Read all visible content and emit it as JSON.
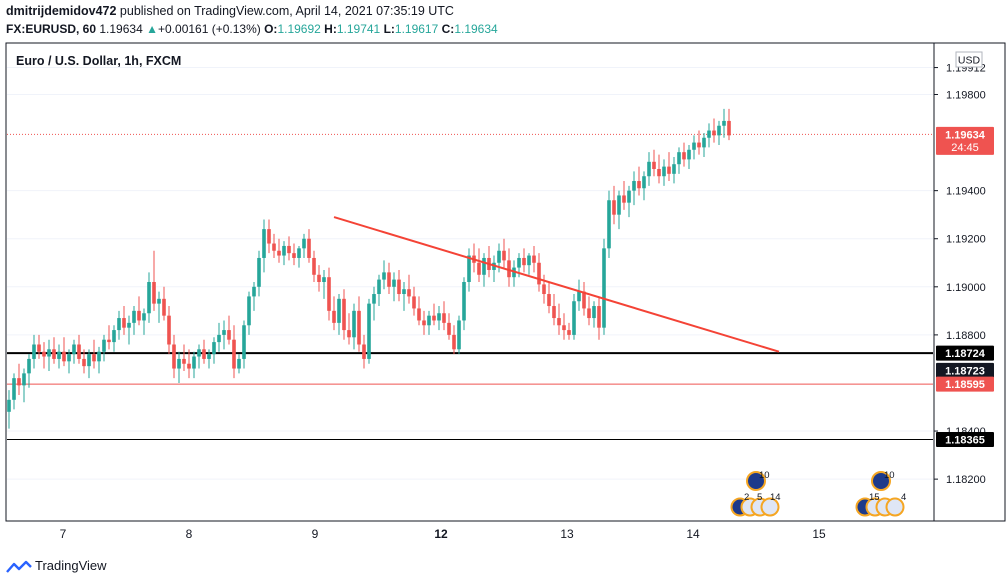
{
  "header": {
    "author": "dmitrijdemidov472",
    "published_text": " published on TradingView.com, April 14, 2021 07:35:19 UTC"
  },
  "quote": {
    "symbol": "FX:EURUSD, 60",
    "last": "1.19634",
    "change": "+0.00161 (+0.13%)",
    "open_label": "O:",
    "open": "1.19692",
    "high_label": "H:",
    "high": "1.19741",
    "low_label": "L:",
    "low": "1.19617",
    "close_label": "C:",
    "close": "1.19634"
  },
  "footer": {
    "brand": "TradingView"
  },
  "chart_data": {
    "type": "candlestick",
    "title": "Euro / U.S. Dollar, 1h, FXCM",
    "currency": "USD",
    "y_ticks": [
      "1.19912",
      "1.19800",
      "1.19400",
      "1.19200",
      "1.19000",
      "1.18800",
      "1.18400",
      "1.18200"
    ],
    "y_tick_values": [
      1.19912,
      1.198,
      1.194,
      1.192,
      1.19,
      1.188,
      1.184,
      1.182
    ],
    "x_ticks": [
      "7",
      "8",
      "9",
      "12",
      "13",
      "14",
      "15"
    ],
    "ylim": [
      1.1803,
      1.2001
    ],
    "last_price": {
      "value": 1.19634,
      "label": "1.19634",
      "countdown": "24:45",
      "color": "#ef5350"
    },
    "price_lines": [
      {
        "value": 1.18724,
        "label": "1.18724",
        "color": "#000000"
      },
      {
        "value": 1.18723,
        "label": "1.18723",
        "color": "#131722"
      },
      {
        "value": 1.18595,
        "label": "1.18595",
        "color": "#ef5350"
      },
      {
        "value": 1.18365,
        "label": "1.18365",
        "color": "#000000"
      }
    ],
    "trendline": {
      "from": {
        "bar": 65,
        "price": 1.1929
      },
      "to": {
        "bar": 154,
        "price": 1.1873
      },
      "color": "#f44336"
    },
    "event_badges": [
      {
        "day": "14",
        "top": "10",
        "bottom": [
          "2",
          "5",
          "14"
        ]
      },
      {
        "day": "15",
        "top": "10",
        "bottom": [
          "15",
          "4"
        ]
      }
    ],
    "colors": {
      "up": "#26a69a",
      "down": "#ef5350"
    },
    "candles": [
      [
        1.1848,
        1.1857,
        1.1841,
        1.1853
      ],
      [
        1.1853,
        1.1864,
        1.1849,
        1.1862
      ],
      [
        1.1862,
        1.1868,
        1.1855,
        1.1859
      ],
      [
        1.1859,
        1.1866,
        1.1852,
        1.1864
      ],
      [
        1.1864,
        1.1872,
        1.1858,
        1.187
      ],
      [
        1.187,
        1.188,
        1.1866,
        1.1876
      ],
      [
        1.1876,
        1.188,
        1.187,
        1.1873
      ],
      [
        1.1873,
        1.1877,
        1.1866,
        1.1871
      ],
      [
        1.1871,
        1.1878,
        1.1865,
        1.1874
      ],
      [
        1.1874,
        1.1879,
        1.1868,
        1.187
      ],
      [
        1.187,
        1.1876,
        1.1866,
        1.1873
      ],
      [
        1.1873,
        1.1879,
        1.1867,
        1.1869
      ],
      [
        1.1869,
        1.1874,
        1.1864,
        1.1872
      ],
      [
        1.1872,
        1.1878,
        1.1868,
        1.1876
      ],
      [
        1.1876,
        1.188,
        1.1868,
        1.187
      ],
      [
        1.187,
        1.1874,
        1.1864,
        1.1867
      ],
      [
        1.1867,
        1.1874,
        1.1862,
        1.1872
      ],
      [
        1.1872,
        1.1878,
        1.1866,
        1.1869
      ],
      [
        1.1869,
        1.1875,
        1.1864,
        1.1873
      ],
      [
        1.1873,
        1.188,
        1.1869,
        1.1878
      ],
      [
        1.1878,
        1.1884,
        1.1874,
        1.1877
      ],
      [
        1.1877,
        1.1884,
        1.1873,
        1.1882
      ],
      [
        1.1882,
        1.189,
        1.1878,
        1.1887
      ],
      [
        1.1887,
        1.1892,
        1.188,
        1.1883
      ],
      [
        1.1883,
        1.1888,
        1.1876,
        1.1885
      ],
      [
        1.1885,
        1.1892,
        1.188,
        1.189
      ],
      [
        1.189,
        1.1896,
        1.1884,
        1.1886
      ],
      [
        1.1886,
        1.1891,
        1.188,
        1.1889
      ],
      [
        1.1889,
        1.1906,
        1.1885,
        1.1902
      ],
      [
        1.1902,
        1.1915,
        1.189,
        1.1893
      ],
      [
        1.1893,
        1.1898,
        1.1885,
        1.1895
      ],
      [
        1.1895,
        1.19,
        1.1886,
        1.1888
      ],
      [
        1.1888,
        1.1892,
        1.1872,
        1.1876
      ],
      [
        1.1876,
        1.188,
        1.1862,
        1.1866
      ],
      [
        1.1866,
        1.1873,
        1.186,
        1.187
      ],
      [
        1.187,
        1.1876,
        1.1865,
        1.1868
      ],
      [
        1.1868,
        1.1874,
        1.1862,
        1.1866
      ],
      [
        1.1866,
        1.1873,
        1.1862,
        1.1871
      ],
      [
        1.1871,
        1.1876,
        1.1866,
        1.1874
      ],
      [
        1.1874,
        1.1878,
        1.1868,
        1.187
      ],
      [
        1.187,
        1.1874,
        1.1866,
        1.1872
      ],
      [
        1.1872,
        1.1879,
        1.1868,
        1.1877
      ],
      [
        1.1877,
        1.1885,
        1.1873,
        1.188
      ],
      [
        1.188,
        1.1886,
        1.1874,
        1.1882
      ],
      [
        1.1882,
        1.1888,
        1.1876,
        1.1878
      ],
      [
        1.1878,
        1.1884,
        1.1862,
        1.1866
      ],
      [
        1.1866,
        1.1872,
        1.1864,
        1.187
      ],
      [
        1.187,
        1.1886,
        1.1866,
        1.1884
      ],
      [
        1.1884,
        1.1898,
        1.188,
        1.1896
      ],
      [
        1.1896,
        1.1902,
        1.189,
        1.19
      ],
      [
        1.19,
        1.1915,
        1.1896,
        1.1912
      ],
      [
        1.1912,
        1.1928,
        1.1906,
        1.1924
      ],
      [
        1.1924,
        1.1928,
        1.1914,
        1.1918
      ],
      [
        1.1918,
        1.1922,
        1.1912,
        1.1915
      ],
      [
        1.1915,
        1.192,
        1.191,
        1.1913
      ],
      [
        1.1913,
        1.1919,
        1.1909,
        1.1917
      ],
      [
        1.1917,
        1.1921,
        1.1911,
        1.1914
      ],
      [
        1.1914,
        1.1918,
        1.1909,
        1.1912
      ],
      [
        1.1912,
        1.1917,
        1.1908,
        1.1916
      ],
      [
        1.1916,
        1.1922,
        1.1912,
        1.192
      ],
      [
        1.192,
        1.1924,
        1.191,
        1.1912
      ],
      [
        1.1912,
        1.1915,
        1.1902,
        1.1905
      ],
      [
        1.1905,
        1.1909,
        1.1898,
        1.1902
      ],
      [
        1.1902,
        1.1907,
        1.1895,
        1.1904
      ],
      [
        1.1904,
        1.1908,
        1.1886,
        1.189
      ],
      [
        1.189,
        1.1896,
        1.1882,
        1.1885
      ],
      [
        1.1885,
        1.1897,
        1.188,
        1.1895
      ],
      [
        1.1895,
        1.1899,
        1.1878,
        1.1882
      ],
      [
        1.1882,
        1.1889,
        1.1876,
        1.1879
      ],
      [
        1.1879,
        1.1893,
        1.1874,
        1.189
      ],
      [
        1.189,
        1.1896,
        1.1873,
        1.1876
      ],
      [
        1.1876,
        1.188,
        1.1866,
        1.187
      ],
      [
        1.187,
        1.1895,
        1.1868,
        1.1893
      ],
      [
        1.1893,
        1.19,
        1.1886,
        1.1897
      ],
      [
        1.1897,
        1.1905,
        1.1892,
        1.1903
      ],
      [
        1.1903,
        1.1911,
        1.1899,
        1.1906
      ],
      [
        1.1906,
        1.191,
        1.1897,
        1.19
      ],
      [
        1.19,
        1.1906,
        1.1894,
        1.1903
      ],
      [
        1.1903,
        1.1907,
        1.1894,
        1.1897
      ],
      [
        1.1897,
        1.1902,
        1.189,
        1.1899
      ],
      [
        1.1899,
        1.1905,
        1.1893,
        1.1896
      ],
      [
        1.1896,
        1.19,
        1.1888,
        1.1891
      ],
      [
        1.1891,
        1.1896,
        1.1884,
        1.1886
      ],
      [
        1.1886,
        1.189,
        1.188,
        1.1884
      ],
      [
        1.1884,
        1.189,
        1.188,
        1.1888
      ],
      [
        1.1888,
        1.1893,
        1.1884,
        1.1886
      ],
      [
        1.1886,
        1.1892,
        1.1882,
        1.1889
      ],
      [
        1.1889,
        1.1894,
        1.1882,
        1.1885
      ],
      [
        1.1885,
        1.1889,
        1.1878,
        1.188
      ],
      [
        1.188,
        1.1884,
        1.1872,
        1.1874
      ],
      [
        1.1874,
        1.1888,
        1.1872,
        1.1886
      ],
      [
        1.1886,
        1.1904,
        1.1882,
        1.1902
      ],
      [
        1.1902,
        1.1916,
        1.1898,
        1.1913
      ],
      [
        1.1913,
        1.1918,
        1.1906,
        1.191
      ],
      [
        1.191,
        1.1916,
        1.1902,
        1.1905
      ],
      [
        1.1905,
        1.1914,
        1.19,
        1.1912
      ],
      [
        1.1912,
        1.1917,
        1.1904,
        1.1907
      ],
      [
        1.1907,
        1.1913,
        1.1902,
        1.191
      ],
      [
        1.191,
        1.1918,
        1.1906,
        1.1915
      ],
      [
        1.1915,
        1.192,
        1.1908,
        1.1911
      ],
      [
        1.1911,
        1.1916,
        1.19,
        1.1904
      ],
      [
        1.1904,
        1.1911,
        1.19,
        1.1908
      ],
      [
        1.1908,
        1.1914,
        1.1904,
        1.1912
      ],
      [
        1.1912,
        1.1916,
        1.1906,
        1.1909
      ],
      [
        1.1909,
        1.1914,
        1.1905,
        1.1913
      ],
      [
        1.1913,
        1.1917,
        1.1906,
        1.191
      ],
      [
        1.191,
        1.1914,
        1.1898,
        1.1901
      ],
      [
        1.1901,
        1.1905,
        1.1893,
        1.1897
      ],
      [
        1.1897,
        1.1902,
        1.1889,
        1.1892
      ],
      [
        1.1892,
        1.1897,
        1.1884,
        1.1887
      ],
      [
        1.1887,
        1.1893,
        1.188,
        1.1884
      ],
      [
        1.1884,
        1.1889,
        1.1878,
        1.1882
      ],
      [
        1.1882,
        1.1885,
        1.1878,
        1.188
      ],
      [
        1.188,
        1.1897,
        1.1878,
        1.1894
      ],
      [
        1.1894,
        1.1903,
        1.189,
        1.1898
      ],
      [
        1.1898,
        1.1902,
        1.1888,
        1.1891
      ],
      [
        1.1891,
        1.1896,
        1.1884,
        1.1887
      ],
      [
        1.1887,
        1.1894,
        1.1883,
        1.1892
      ],
      [
        1.1892,
        1.1896,
        1.1878,
        1.1883
      ],
      [
        1.1883,
        1.192,
        1.188,
        1.1916
      ],
      [
        1.1916,
        1.194,
        1.1912,
        1.1936
      ],
      [
        1.1936,
        1.1942,
        1.1926,
        1.193
      ],
      [
        1.193,
        1.194,
        1.1924,
        1.1938
      ],
      [
        1.1938,
        1.1944,
        1.1932,
        1.1935
      ],
      [
        1.1935,
        1.1942,
        1.1929,
        1.194
      ],
      [
        1.194,
        1.1948,
        1.1934,
        1.1944
      ],
      [
        1.1944,
        1.195,
        1.1938,
        1.1941
      ],
      [
        1.1941,
        1.1948,
        1.1936,
        1.1946
      ],
      [
        1.1946,
        1.1956,
        1.1942,
        1.1952
      ],
      [
        1.1952,
        1.1957,
        1.1946,
        1.1949
      ],
      [
        1.1949,
        1.1955,
        1.1943,
        1.1946
      ],
      [
        1.1946,
        1.1953,
        1.1942,
        1.195
      ],
      [
        1.195,
        1.1956,
        1.1944,
        1.1947
      ],
      [
        1.1947,
        1.1954,
        1.1943,
        1.1951
      ],
      [
        1.1951,
        1.1958,
        1.1947,
        1.1956
      ],
      [
        1.1956,
        1.196,
        1.195,
        1.1953
      ],
      [
        1.1953,
        1.1959,
        1.1949,
        1.1957
      ],
      [
        1.1957,
        1.1963,
        1.1953,
        1.196
      ],
      [
        1.196,
        1.1965,
        1.1955,
        1.1958
      ],
      [
        1.1958,
        1.1964,
        1.1954,
        1.1962
      ],
      [
        1.1962,
        1.1968,
        1.1958,
        1.1965
      ],
      [
        1.1965,
        1.197,
        1.196,
        1.1963
      ],
      [
        1.1963,
        1.1969,
        1.1959,
        1.1967
      ],
      [
        1.1967,
        1.1974,
        1.1962,
        1.1969
      ],
      [
        1.1969,
        1.1974,
        1.1961,
        1.1963
      ]
    ]
  }
}
